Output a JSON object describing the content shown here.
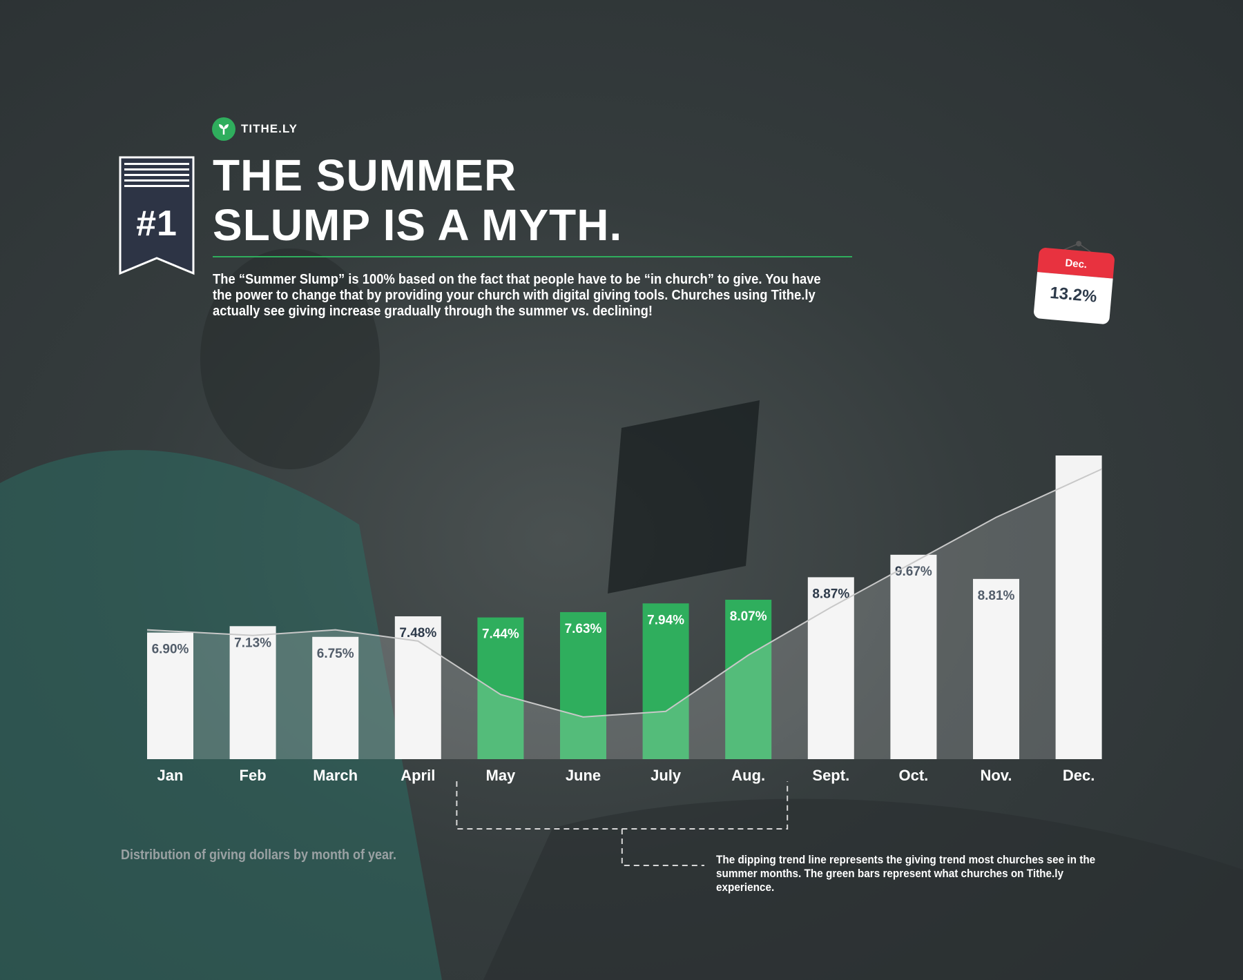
{
  "brand": {
    "name": "TITHE.LY",
    "accent": "#2fae5d",
    "icon": "sprout-icon"
  },
  "badge": {
    "rank": "#1"
  },
  "headline": {
    "line1": "THE SUMMER",
    "line2": "SLUMP IS A MYTH."
  },
  "intro": "The “Summer Slump” is 100% based on the fact that people have to be “in church” to give. You have the power to change that by providing your church with digital giving tools. Churches using Tithe.ly actually see giving increase gradually through the summer vs. declining!",
  "callout": {
    "month": "Dec.",
    "value": "13.2%"
  },
  "caption": "Distribution of giving dollars by month of year.",
  "note": "The dipping trend line represents the giving trend most churches see in the summer months. The green bars represent what churches on Tithe.ly experience.",
  "colors": {
    "bar_default": "#f3f3f3",
    "bar_highlight": "#2fae5d",
    "label_dark": "#2d3a4a",
    "trend_line": "#c8c8c8",
    "callout_red": "#e8323f"
  },
  "chart_data": {
    "type": "bar",
    "categories": [
      "Jan",
      "Feb",
      "March",
      "April",
      "May",
      "June",
      "July",
      "Aug.",
      "Sept.",
      "Oct.",
      "Nov.",
      "Dec."
    ],
    "values": [
      6.9,
      7.13,
      6.75,
      7.48,
      7.44,
      7.63,
      7.94,
      8.07,
      8.87,
      9.67,
      8.81,
      13.2
    ],
    "value_labels": [
      "6.90%",
      "7.13%",
      "6.75%",
      "7.48%",
      "7.44%",
      "7.63%",
      "7.94%",
      "8.07%",
      "8.87%",
      "9.67%",
      "8.81%",
      ""
    ],
    "highlighted": [
      "May",
      "June",
      "July",
      "Aug."
    ],
    "trend_line": [
      7.0,
      6.8,
      7.0,
      6.6,
      4.7,
      3.9,
      4.1,
      6.1,
      7.8,
      9.4,
      11.0
    ],
    "title": "",
    "xlabel": "",
    "ylabel": "",
    "grid": false,
    "legend": "none"
  }
}
